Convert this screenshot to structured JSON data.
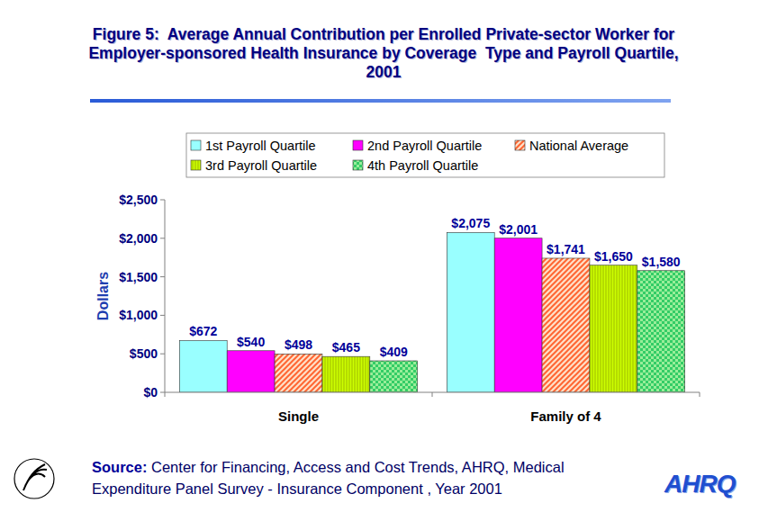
{
  "chart_data": {
    "type": "bar",
    "title": "Figure 5:  Average Annual Contribution per Enrolled Private-sector Worker for Employer-sponsored Health Insurance by Coverage  Type and Payroll Quartile, 2001",
    "y_label": "Dollars",
    "categories": [
      "Single",
      "Family of 4"
    ],
    "series": [
      {
        "name": "1st Payroll Quartile",
        "color": "#99FFFF",
        "values": [
          672,
          2075
        ],
        "value_labels": [
          "$672",
          "$2,075"
        ]
      },
      {
        "name": "2nd Payroll Quartile",
        "color": "#FF00FF",
        "values": [
          540,
          2001
        ],
        "value_labels": [
          "$540",
          "$2,001"
        ]
      },
      {
        "name": "National Average",
        "color": "#FF6633",
        "values": [
          498,
          1741
        ],
        "value_labels": [
          "$498",
          "$1,741"
        ]
      },
      {
        "name": "3rd Payroll Quartile",
        "color": "#CCFF00",
        "values": [
          465,
          1650
        ],
        "value_labels": [
          "$465",
          "$1,650"
        ]
      },
      {
        "name": "4th Payroll Quartile",
        "color": "#33CC66",
        "values": [
          409,
          1580
        ],
        "value_labels": [
          "$409",
          "$1,580"
        ]
      }
    ],
    "ylim": [
      0,
      2500
    ],
    "yticks": [
      {
        "value": 0,
        "label": "$0"
      },
      {
        "value": 500,
        "label": "$500"
      },
      {
        "value": 1000,
        "label": "$1,000"
      },
      {
        "value": 1500,
        "label": "$1,500"
      },
      {
        "value": 2000,
        "label": "$2,000"
      },
      {
        "value": 2500,
        "label": "$2,500"
      }
    ],
    "grid": false,
    "legend": "top",
    "data_labels": true,
    "source": {
      "label": "Source:",
      "text": "Center for Financing, Access and Cost Trends, AHRQ, Medical Expenditure Panel Survey - Insurance Component , Year 2001"
    },
    "logo": "AHRQ"
  }
}
